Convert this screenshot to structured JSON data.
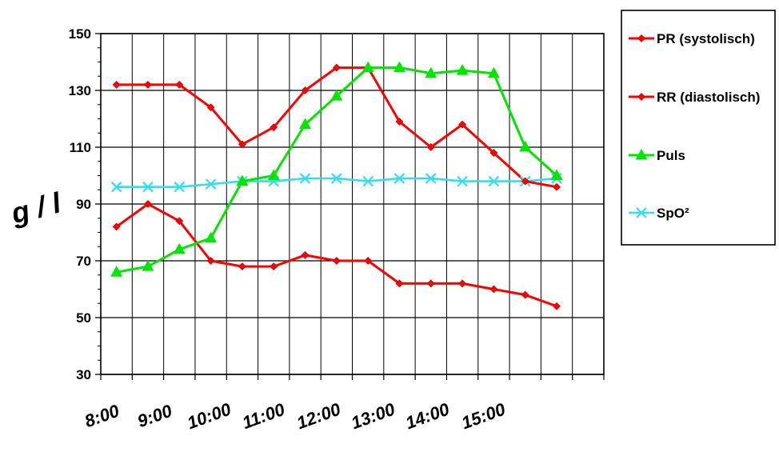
{
  "chart_data": {
    "type": "line",
    "title": "",
    "xlabel": "",
    "ylabel": "g / l",
    "ylim": [
      30,
      150
    ],
    "y_ticks": [
      "30",
      "50",
      "70",
      "90",
      "110",
      "130",
      "150"
    ],
    "x_tick_labels": [
      "8:00",
      "9:00",
      "10:00",
      "11:00",
      "12:00",
      "13:00",
      "14:00",
      "15:00"
    ],
    "x": [
      "8:10",
      "8:50",
      "9:30",
      "10:10",
      "10:50",
      "11:30",
      "12:10",
      "12:50",
      "13:30",
      "14:10",
      "14:50",
      "15:30",
      "16:10",
      "16:50",
      "17:30"
    ],
    "grid": true,
    "legend_position": "right",
    "series": [
      {
        "name": "PR (systolisch)",
        "color": "#ff0000",
        "marker": "diamond",
        "values": [
          132,
          132,
          132,
          124,
          111,
          117,
          130,
          138,
          138,
          119,
          110,
          118,
          108,
          98,
          96
        ]
      },
      {
        "name": "RR (diastolisch)",
        "color": "#ff0000",
        "marker": "diamond",
        "values": [
          82,
          90,
          84,
          70,
          68,
          68,
          72,
          70,
          70,
          62,
          62,
          62,
          60,
          58,
          54
        ]
      },
      {
        "name": "Puls",
        "color": "#00e600",
        "marker": "triangle",
        "values": [
          66,
          68,
          74,
          78,
          98,
          100,
          118,
          128,
          138,
          138,
          136,
          137,
          136,
          110,
          100
        ]
      },
      {
        "name": "SpO²",
        "color": "#33ddee",
        "marker": "x",
        "values": [
          96,
          96,
          96,
          97,
          98,
          98,
          99,
          99,
          98,
          99,
          99,
          98,
          98,
          98,
          99
        ]
      }
    ]
  }
}
